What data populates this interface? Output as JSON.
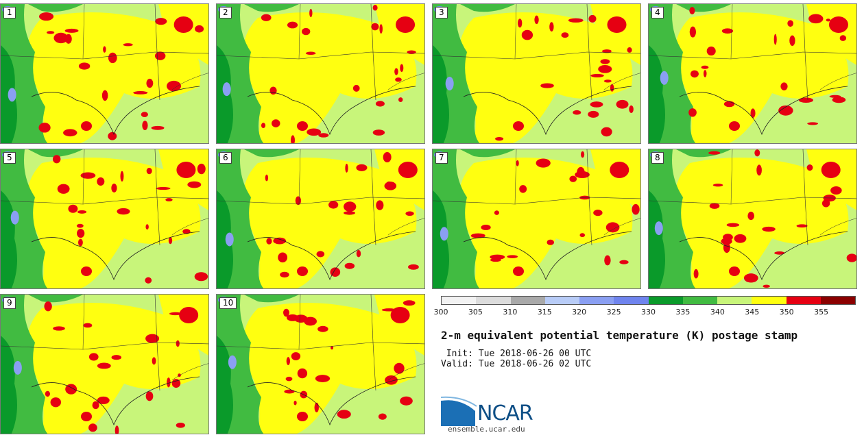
{
  "figure": {
    "title": "2-m equivalent potential temperature (K) postage stamp",
    "init": " Init: Tue 2018-06-26 00 UTC",
    "valid": "Valid: Tue 2018-06-26 02 UTC"
  },
  "members": [
    "1",
    "2",
    "3",
    "4",
    "5",
    "6",
    "7",
    "8",
    "9",
    "10"
  ],
  "colorbar": {
    "tick_labels": [
      "300",
      "305",
      "310",
      "315",
      "320",
      "325",
      "330",
      "335",
      "340",
      "345",
      "350",
      "355"
    ],
    "colors": [
      "#f2f2f2",
      "#dcdcdc",
      "#a9a9a9",
      "#b8ccf7",
      "#8a9ff2",
      "#6f84ee",
      "#0a9a2a",
      "#41bb41",
      "#c8f57a",
      "#ffff10",
      "#e60012",
      "#8b0000"
    ],
    "range": [
      300,
      360
    ]
  },
  "logo": {
    "name": "NCAR",
    "url_text": "ensemble.ucar.edu"
  }
}
